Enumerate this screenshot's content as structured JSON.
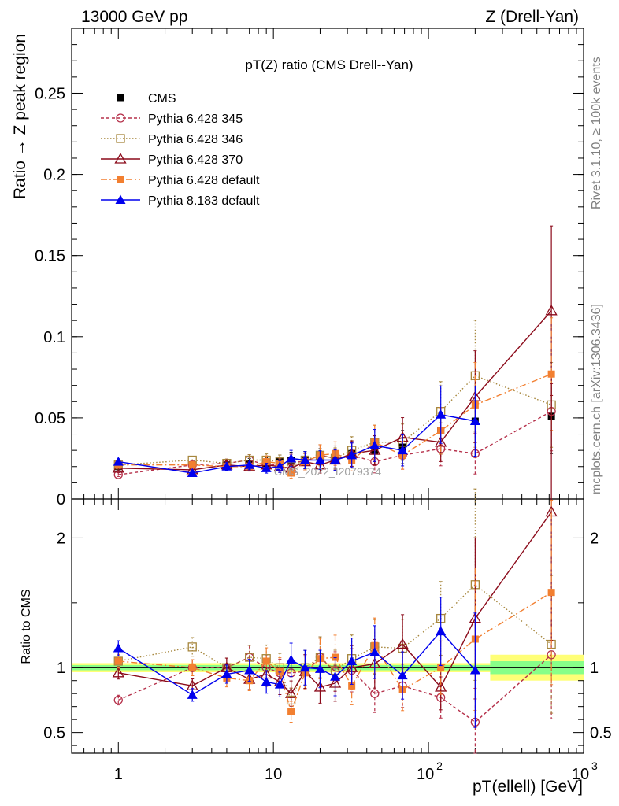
{
  "header": {
    "left": "13000 GeV pp",
    "right": "Z (Drell-Yan)"
  },
  "side_labels": {
    "rivet": "Rivet 3.1.10, ≥ 100k events",
    "mcplots": "mcplots.cern.ch [arXiv:1306.3436]"
  },
  "watermark": "CMS_2022_I2079374",
  "colors": {
    "cms": "#000000",
    "p345": "#b5304a",
    "p346": "#a6863c",
    "p370": "#8b0a1a",
    "p6def": "#f27f30",
    "p8def": "#0000ee",
    "band_inner": "#88ff88",
    "band_outer": "#ffff77"
  },
  "chart_data": [
    {
      "type": "line",
      "title": "pT(Z) ratio (CMS Drell--Yan)",
      "xlabel": "pT(ellell) [GeV]",
      "ylabel": "Ratio → Z peak region",
      "xscale": "log",
      "xlim": [
        0.5,
        1000
      ],
      "ylim": [
        0,
        0.29
      ],
      "yticks": [
        0,
        0.05,
        0.1,
        0.15,
        0.2,
        0.25
      ],
      "ytick_labels": [
        "0",
        "0.05",
        "0.1",
        "0.15",
        "0.2",
        "0.25"
      ],
      "xtick_labels": [
        "1",
        "10",
        "10",
        "10"
      ],
      "xtick_exponents": [
        "",
        "",
        "2",
        "3"
      ],
      "x": [
        1,
        3,
        5,
        7,
        9,
        11,
        13,
        16,
        20,
        25,
        32,
        45,
        68,
        120,
        200,
        620
      ],
      "legend": {
        "position": "top-left",
        "entries": [
          "CMS",
          "Pythia 6.428 345",
          "Pythia 6.428 346",
          "Pythia 6.428 370",
          "Pythia 6.428 default",
          "Pythia 8.183 default"
        ]
      },
      "series": [
        {
          "name": "CMS",
          "key": "cms",
          "values": [
            0.02,
            0.021,
            0.021,
            0.022,
            0.022,
            0.023,
            0.024,
            0.024,
            0.025,
            0.026,
            0.028,
            0.03,
            0.032,
            0.042,
            0.048,
            0.051
          ]
        },
        {
          "name": "Pythia 6.428 345",
          "key": "p345",
          "values": [
            0.015,
            0.021,
            0.022,
            0.024,
            0.021,
            0.021,
            0.023,
            0.023,
            0.027,
            0.025,
            0.027,
            0.023,
            0.027,
            0.031,
            0.028,
            0.054
          ]
        },
        {
          "name": "Pythia 6.428 346",
          "key": "p346",
          "values": [
            0.021,
            0.024,
            0.022,
            0.024,
            0.024,
            0.023,
            0.02,
            0.024,
            0.027,
            0.025,
            0.03,
            0.035,
            0.035,
            0.054,
            0.076,
            0.058
          ]
        },
        {
          "name": "Pythia 6.428 370",
          "key": "p370",
          "values": [
            0.019,
            0.018,
            0.021,
            0.02,
            0.021,
            0.02,
            0.019,
            0.023,
            0.021,
            0.024,
            0.028,
            0.03,
            0.038,
            0.035,
            0.063,
            0.116
          ]
        },
        {
          "name": "Pythia 6.428 default",
          "key": "p6def",
          "values": [
            0.021,
            0.021,
            0.02,
            0.02,
            0.023,
            0.022,
            0.016,
            0.023,
            0.027,
            0.028,
            0.024,
            0.035,
            0.027,
            0.042,
            0.058,
            0.077
          ]
        },
        {
          "name": "Pythia 8.183 default",
          "key": "p8def",
          "values": [
            0.023,
            0.016,
            0.02,
            0.021,
            0.019,
            0.02,
            0.025,
            0.024,
            0.024,
            0.024,
            0.027,
            0.033,
            0.03,
            0.052,
            0.048,
            null
          ]
        }
      ]
    },
    {
      "type": "line",
      "title": "",
      "xlabel": "pT(ellell) [GeV]",
      "ylabel": "Ratio to CMS",
      "xscale": "log",
      "xlim": [
        0.5,
        1000
      ],
      "ylim": [
        0.34,
        2.3
      ],
      "yticks": [
        0.5,
        1,
        2
      ],
      "ytick_labels": [
        "0.5",
        "1",
        "2"
      ],
      "x": [
        1,
        3,
        5,
        7,
        9,
        11,
        13,
        16,
        20,
        25,
        32,
        45,
        68,
        120,
        200,
        620
      ],
      "series": [
        {
          "name": "Pythia 6.428 345",
          "key": "p345",
          "values": [
            0.75,
            1.0,
            1.0,
            1.08,
            1.0,
            0.96,
            0.96,
            0.97,
            1.08,
            0.97,
            0.98,
            0.8,
            0.86,
            0.77,
            0.58,
            1.1
          ]
        },
        {
          "name": "Pythia 6.428 346",
          "key": "p346",
          "values": [
            1.05,
            1.16,
            1.0,
            1.08,
            1.07,
            1.0,
            0.75,
            1.0,
            1.08,
            0.98,
            1.07,
            1.16,
            1.15,
            1.38,
            1.64,
            1.18
          ]
        },
        {
          "name": "Pythia 6.428 370",
          "key": "p370",
          "values": [
            0.96,
            0.86,
            1.0,
            0.91,
            0.95,
            0.89,
            0.8,
            0.97,
            0.85,
            0.88,
            1.0,
            1.03,
            1.18,
            0.85,
            1.38,
            2.2
          ]
        },
        {
          "name": "Pythia 6.428 default",
          "key": "p6def",
          "values": [
            1.05,
            1.0,
            0.92,
            0.9,
            1.05,
            0.97,
            0.66,
            0.96,
            1.07,
            1.08,
            0.86,
            1.17,
            0.83,
            1.0,
            1.22,
            1.58
          ]
        },
        {
          "name": "Pythia 8.183 default",
          "key": "p8def",
          "values": [
            1.15,
            0.79,
            0.95,
            0.98,
            0.89,
            0.87,
            1.06,
            1.0,
            0.99,
            0.93,
            1.05,
            1.12,
            0.94,
            1.28,
            0.98,
            null
          ]
        }
      ]
    }
  ]
}
